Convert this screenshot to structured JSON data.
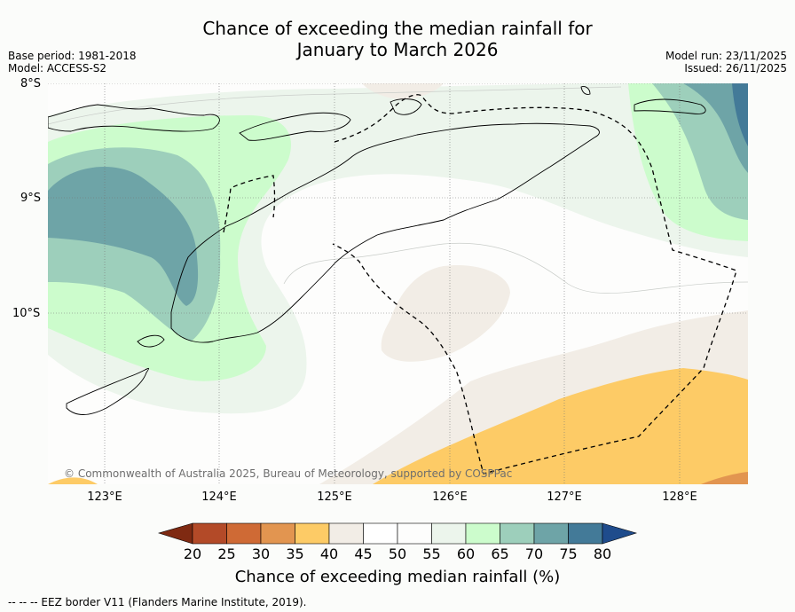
{
  "title_line1": "Chance of exceeding the median rainfall for",
  "title_line2": "January to March 2026",
  "meta": {
    "base_period": "Base period: 1981-2018",
    "model": "Model: ACCESS-S2",
    "model_run": "Model run: 23/11/2025",
    "issued": "Issued: 26/11/2025"
  },
  "map": {
    "lat_labels": [
      "8°S",
      "9°S",
      "10°S"
    ],
    "lon_labels": [
      "123°E",
      "124°E",
      "125°E",
      "126°E",
      "127°E",
      "128°E"
    ],
    "copyright": "© Commonwealth of Australia 2025, Bureau of Meteorology, supported by COSPPac"
  },
  "colorbar": {
    "ticks": [
      "20",
      "25",
      "30",
      "35",
      "40",
      "45",
      "50",
      "55",
      "60",
      "65",
      "70",
      "75",
      "80"
    ],
    "colors": [
      "#7f2a12",
      "#b34a28",
      "#cf6a35",
      "#e29550",
      "#fdcb66",
      "#f2ede6",
      "#ffffff",
      "#fdfdfc",
      "#ecf5ec",
      "#ccfccc",
      "#9dcfbb",
      "#6ea4a7",
      "#437a98",
      "#1f4c8c"
    ],
    "label": "Chance of exceeding median rainfall (%)"
  },
  "eez_note": "--  --  -- EEZ border V11 (Flanders Marine Institute, 2019)."
}
